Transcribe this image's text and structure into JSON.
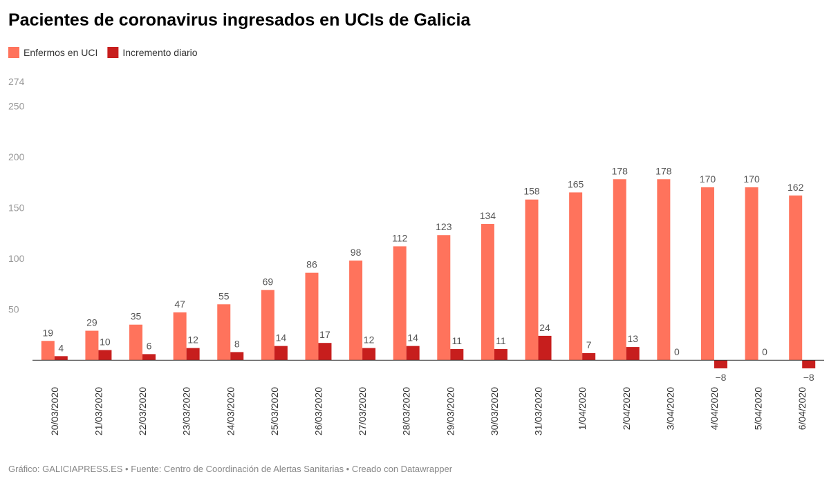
{
  "chart_data": {
    "type": "bar",
    "title": "Pacientes de coronavirus ingresados en UCIs de Galicia",
    "footer": "Gráfico: GALICIAPRESS.ES • Fuente: Centro de Coordinación de Alertas Sanitarias • Creado con Datawrapper",
    "categories": [
      "20/03/2020",
      "21/03/2020",
      "22/03/2020",
      "23/03/2020",
      "24/03/2020",
      "25/03/2020",
      "26/03/2020",
      "27/03/2020",
      "28/03/2020",
      "29/03/2020",
      "30/03/2020",
      "31/03/2020",
      "1/04/2020",
      "2/04/2020",
      "3/04/2020",
      "4/04/2020",
      "5/04/2020",
      "6/04/2020"
    ],
    "series": [
      {
        "name": "Enfermos en UCI",
        "color": "#ff735c",
        "values": [
          19,
          29,
          35,
          47,
          55,
          69,
          86,
          98,
          112,
          123,
          134,
          158,
          165,
          178,
          178,
          170,
          170,
          162
        ]
      },
      {
        "name": "Incremento diario",
        "color": "#c71e1d",
        "values": [
          4,
          10,
          6,
          12,
          8,
          14,
          17,
          12,
          14,
          11,
          11,
          24,
          7,
          13,
          0,
          -8,
          0,
          -8
        ],
        "value_labels": [
          "4",
          "10",
          "6",
          "12",
          "8",
          "14",
          "17",
          "12",
          "14",
          "11",
          "11",
          "24",
          "7",
          "13",
          "0",
          "−8",
          "0",
          "−8"
        ]
      }
    ],
    "ylim": [
      -8,
      274
    ],
    "yticks": [
      50,
      100,
      150,
      200,
      250,
      274
    ],
    "grid": false,
    "legend": "top-left"
  }
}
